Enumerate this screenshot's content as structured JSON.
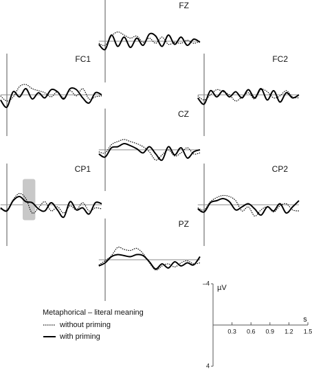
{
  "chart_data": {
    "type": "line",
    "title": "Metaphorical – literal meaning",
    "x": [
      -0.1,
      0,
      0.1,
      0.2,
      0.3,
      0.4,
      0.5,
      0.6,
      0.7,
      0.8,
      0.9,
      1.0,
      1.1,
      1.2,
      1.3,
      1.4,
      1.5
    ],
    "xlim": [
      -0.1,
      1.5
    ],
    "ylim": [
      4,
      -4
    ],
    "xlabel": "s",
    "ylabel": "µV",
    "xticks": [
      0.3,
      0.6,
      0.9,
      1.2,
      1.5
    ],
    "yticks": [
      {
        "value": -4,
        "label": "–4"
      },
      4
    ],
    "series": [
      {
        "name": "without priming",
        "style": "dotted",
        "color": "#000000"
      },
      {
        "name": "with priming",
        "style": "solid",
        "color": "#000000"
      }
    ],
    "panels": [
      {
        "label": "FZ",
        "series": [
          {
            "values": [
              0.2,
              0.4,
              -0.5,
              -0.9,
              -0.6,
              -0.3,
              -0.5,
              0.1,
              -0.3,
              0.2,
              -0.4,
              0.3,
              0.1,
              0.2,
              -0.1,
              0.2,
              0.0
            ]
          },
          {
            "values": [
              0.3,
              0.8,
              -0.6,
              0.5,
              -0.4,
              0.6,
              -0.3,
              0.4,
              -0.7,
              -0.5,
              0.5,
              -0.6,
              0.3,
              -0.4,
              0.4,
              -0.2,
              0.1
            ]
          }
        ]
      },
      {
        "label": "FC1",
        "series": [
          {
            "values": [
              0.1,
              0.6,
              0.2,
              -0.8,
              -1.0,
              -0.6,
              -0.4,
              -0.2,
              0.2,
              -0.3,
              0.3,
              -0.4,
              0.1,
              -0.6,
              0.4,
              0.2,
              0.1
            ]
          },
          {
            "values": [
              0.5,
              1.2,
              -0.3,
              0.2,
              -0.6,
              0.4,
              -0.2,
              0.3,
              -0.5,
              -0.3,
              0.4,
              -0.6,
              -0.5,
              0.3,
              0.8,
              -0.2,
              0.0
            ]
          }
        ]
      },
      {
        "label": "FC2",
        "series": [
          {
            "values": [
              0.1,
              0.5,
              0.0,
              -0.5,
              -0.3,
              0.0,
              0.6,
              0.2,
              -0.2,
              0.4,
              -0.5,
              -0.3,
              0.3,
              0.1,
              -0.4,
              0.2,
              0.3
            ]
          },
          {
            "values": [
              0.3,
              0.9,
              -0.4,
              0.2,
              -0.4,
              0.2,
              -0.3,
              0.3,
              -0.5,
              0.3,
              -0.6,
              0.5,
              -0.4,
              0.7,
              -0.2,
              0.3,
              0.0
            ]
          }
        ]
      },
      {
        "label": "CZ",
        "series": [
          {
            "values": [
              0.2,
              0.3,
              -0.5,
              -0.8,
              -1.0,
              -0.8,
              -0.6,
              -0.3,
              0.2,
              1.0,
              0.5,
              0.0,
              0.6,
              0.3,
              -0.2,
              0.4,
              0.3
            ]
          },
          {
            "values": [
              0.4,
              0.7,
              -0.2,
              -0.3,
              -0.6,
              -0.4,
              -0.1,
              0.3,
              -0.3,
              0.4,
              1.0,
              -0.3,
              0.5,
              -0.2,
              0.8,
              0.2,
              0.0
            ]
          }
        ]
      },
      {
        "label": "CP1",
        "highlight": {
          "x": [
            0.25,
            0.45
          ],
          "y": [
            -2.5,
            1.5
          ]
        },
        "series": [
          {
            "values": [
              0.4,
              0.5,
              -0.5,
              -1.1,
              -0.6,
              0.8,
              0.3,
              -0.3,
              0.6,
              0.2,
              0.8,
              0.1,
              0.5,
              -0.2,
              0.6,
              0.3,
              0.4
            ]
          },
          {
            "values": [
              0.3,
              0.6,
              -0.4,
              -0.8,
              -0.3,
              -0.2,
              0.4,
              0.6,
              -0.2,
              0.5,
              1.2,
              -0.3,
              0.5,
              0.3,
              0.9,
              -0.2,
              -0.1
            ]
          }
        ]
      },
      {
        "label": "CP2",
        "series": [
          {
            "values": [
              0.3,
              0.5,
              -0.3,
              -0.7,
              -0.9,
              -0.8,
              -0.4,
              0.6,
              0.2,
              1.1,
              0.5,
              0.2,
              0.7,
              0.1,
              -0.1,
              0.5,
              0.6
            ]
          },
          {
            "values": [
              0.4,
              0.7,
              -0.2,
              -0.4,
              -0.6,
              -0.3,
              0.5,
              0.2,
              -0.1,
              0.4,
              1.0,
              0.2,
              0.6,
              -0.1,
              0.8,
              0.2,
              -0.4
            ]
          }
        ]
      },
      {
        "label": "PZ",
        "series": [
          {
            "values": [
              0.5,
              0.1,
              -0.4,
              -1.2,
              -1.0,
              -0.9,
              -1.1,
              -0.6,
              0.3,
              1.0,
              0.6,
              0.4,
              0.7,
              0.3,
              0.1,
              0.4,
              0.3
            ]
          },
          {
            "values": [
              0.6,
              0.3,
              -0.3,
              -0.5,
              -0.4,
              -0.3,
              -0.5,
              -0.4,
              0.2,
              0.9,
              0.4,
              0.8,
              0.2,
              0.6,
              0.3,
              0.5,
              -0.3
            ]
          }
        ]
      }
    ]
  }
}
